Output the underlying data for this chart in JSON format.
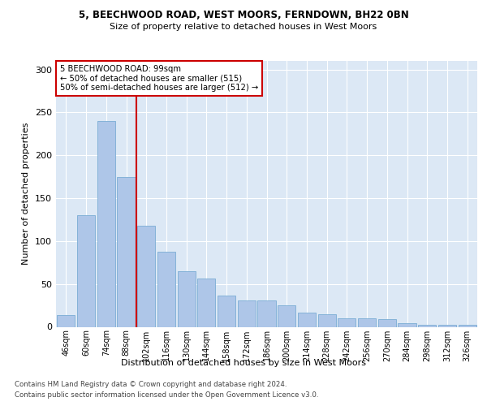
{
  "title_line1": "5, BEECHWOOD ROAD, WEST MOORS, FERNDOWN, BH22 0BN",
  "title_line2": "Size of property relative to detached houses in West Moors",
  "xlabel": "Distribution of detached houses by size in West Moors",
  "ylabel": "Number of detached properties",
  "categories": [
    "46sqm",
    "60sqm",
    "74sqm",
    "88sqm",
    "102sqm",
    "116sqm",
    "130sqm",
    "144sqm",
    "158sqm",
    "172sqm",
    "186sqm",
    "200sqm",
    "214sqm",
    "228sqm",
    "242sqm",
    "256sqm",
    "270sqm",
    "284sqm",
    "298sqm",
    "312sqm",
    "326sqm"
  ],
  "values": [
    14,
    130,
    240,
    175,
    118,
    88,
    65,
    56,
    36,
    31,
    31,
    25,
    17,
    15,
    10,
    10,
    9,
    4,
    2,
    2,
    2
  ],
  "bar_color": "#aec6e8",
  "bar_edge_color": "#7aadd4",
  "vline_color": "#cc0000",
  "annotation_text": "5 BEECHWOOD ROAD: 99sqm\n← 50% of detached houses are smaller (515)\n50% of semi-detached houses are larger (512) →",
  "annotation_box_color": "#ffffff",
  "annotation_box_edge_color": "#cc0000",
  "ylim": [
    0,
    310
  ],
  "yticks": [
    0,
    50,
    100,
    150,
    200,
    250,
    300
  ],
  "background_color": "#dce8f5",
  "footer_line1": "Contains HM Land Registry data © Crown copyright and database right 2024.",
  "footer_line2": "Contains public sector information licensed under the Open Government Licence v3.0."
}
